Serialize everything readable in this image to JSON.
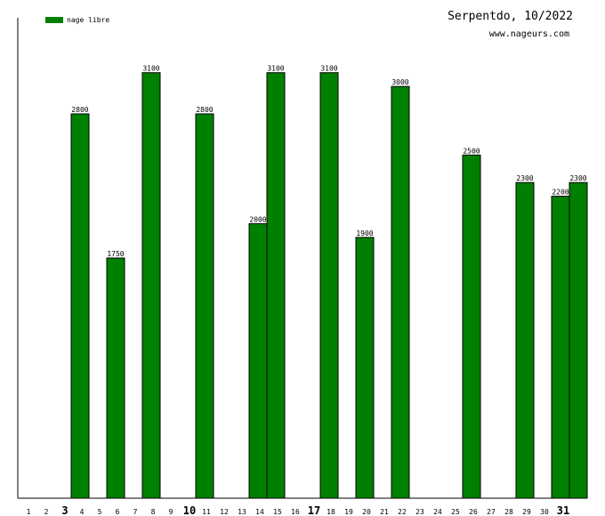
{
  "colors": {
    "bar": "#008000",
    "bar_stroke": "#000000",
    "axis": "#000000",
    "text": "#000000"
  },
  "chart_data": {
    "type": "bar",
    "title": "Serpentdo, 10/2022",
    "subtitle": "www.nageurs.com",
    "legend": {
      "label": "nage libre",
      "placement": "top-left"
    },
    "series": [
      {
        "name": "nage libre",
        "values": [
          null,
          null,
          2800,
          null,
          1750,
          null,
          3100,
          null,
          null,
          2800,
          null,
          null,
          2000,
          3100,
          null,
          null,
          3100,
          null,
          1900,
          null,
          3000,
          null,
          null,
          null,
          2500,
          null,
          null,
          2300,
          null,
          2200,
          2300
        ]
      }
    ],
    "categories": [
      "1",
      "2",
      "3",
      "4",
      "5",
      "6",
      "7",
      "8",
      "9",
      "10",
      "11",
      "12",
      "13",
      "14",
      "15",
      "16",
      "17",
      "18",
      "19",
      "20",
      "21",
      "22",
      "23",
      "24",
      "25",
      "26",
      "27",
      "28",
      "29",
      "30",
      "31"
    ],
    "bold_categories": [
      "3",
      "10",
      "17",
      "31"
    ],
    "ylim": [
      0,
      3500
    ],
    "grid": false,
    "xlabel": "",
    "ylabel": ""
  }
}
